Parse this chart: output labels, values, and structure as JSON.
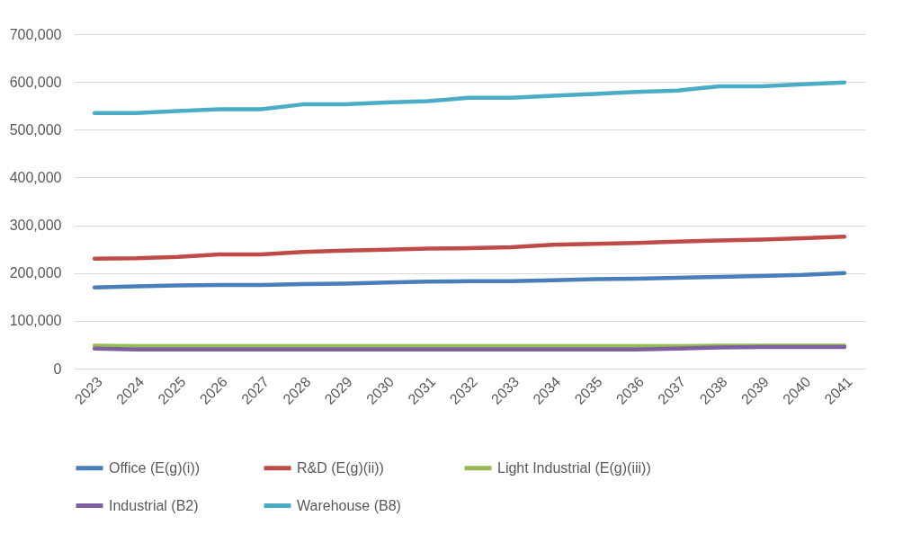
{
  "chart_data": {
    "type": "line",
    "categories": [
      "2023",
      "2024",
      "2025",
      "2026",
      "2027",
      "2028",
      "2029",
      "2030",
      "2031",
      "2032",
      "2033",
      "2034",
      "2035",
      "2036",
      "2037",
      "2038",
      "2039",
      "2040",
      "2041"
    ],
    "series": [
      {
        "name": "Office (E(g)(i))",
        "color": "#4a7ebb",
        "values": [
          170000,
          172000,
          174000,
          175000,
          175000,
          177000,
          178000,
          180000,
          182000,
          183000,
          183000,
          185000,
          187000,
          188000,
          190000,
          192000,
          194000,
          196000,
          200000
        ]
      },
      {
        "name": "R&D (E(g)(ii))",
        "color": "#be4b48",
        "values": [
          230000,
          231000,
          234000,
          239000,
          239000,
          244000,
          247000,
          249000,
          251000,
          252000,
          254000,
          259000,
          261000,
          263000,
          266000,
          268000,
          270000,
          273000,
          276000
        ]
      },
      {
        "name": "Light Industrial (E(g)(iii))",
        "color": "#98b954",
        "values": [
          48000,
          47000,
          47000,
          47000,
          47000,
          47000,
          47000,
          47000,
          47000,
          47000,
          47000,
          47000,
          47000,
          47000,
          47000,
          48000,
          48000,
          48000,
          48000
        ]
      },
      {
        "name": "Industrial (B2)",
        "color": "#7d60a0",
        "values": [
          42000,
          40000,
          40000,
          40000,
          40000,
          40000,
          40000,
          40000,
          40000,
          40000,
          40000,
          40000,
          40000,
          40000,
          42000,
          44000,
          45000,
          45000,
          45000
        ]
      },
      {
        "name": "Warehouse (B8)",
        "color": "#4bacc6",
        "values": [
          535000,
          535000,
          539000,
          543000,
          543000,
          553000,
          553000,
          557000,
          560000,
          567000,
          567000,
          571000,
          575000,
          579000,
          582000,
          591000,
          591000,
          595000,
          599000
        ]
      }
    ],
    "ylim": [
      0,
      700000
    ],
    "yticks": [
      {
        "value": 0,
        "label": "0"
      },
      {
        "value": 100000,
        "label": "100,000"
      },
      {
        "value": 200000,
        "label": "200,000"
      },
      {
        "value": 300000,
        "label": "300,000"
      },
      {
        "value": 400000,
        "label": "400,000"
      },
      {
        "value": 500000,
        "label": "500,000"
      },
      {
        "value": 600000,
        "label": "600,000"
      },
      {
        "value": 700000,
        "label": "700,000"
      }
    ],
    "grid": "y",
    "legend": "bottom",
    "marker": "none",
    "line_style": "solid"
  }
}
